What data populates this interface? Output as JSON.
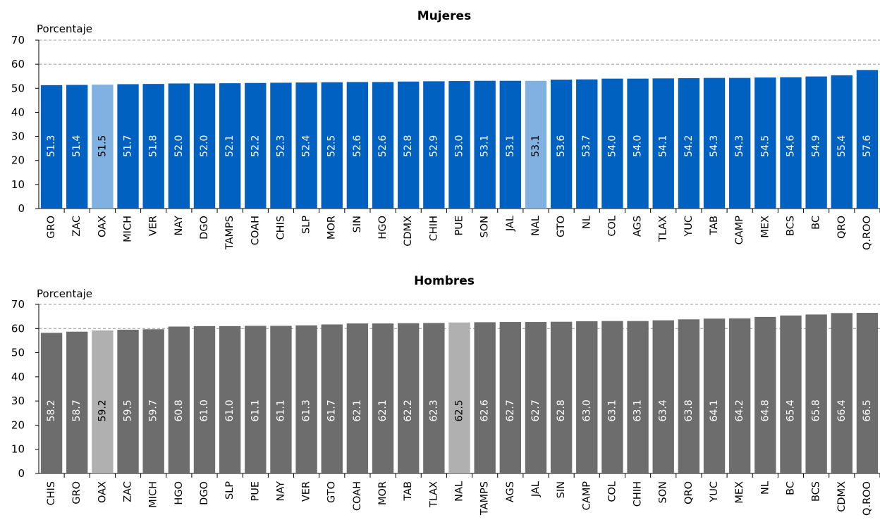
{
  "chart_data": [
    {
      "type": "bar",
      "title": "Mujeres",
      "ylabel": "Porcentaje",
      "ylim": [
        0,
        70
      ],
      "yticks": [
        0,
        10,
        20,
        30,
        40,
        50,
        60,
        70
      ],
      "grid": "dashed-horizontal-at-60-and-70",
      "colors": {
        "bar": "#0061c0",
        "highlight": "#80b1e0",
        "label": "#ffffff",
        "highlight_label": "#000000"
      },
      "highlight": [
        "OAX",
        "NAL"
      ],
      "categories": [
        "GRO",
        "ZAC",
        "OAX",
        "MICH",
        "VER",
        "NAY",
        "DGO",
        "TAMPS",
        "COAH",
        "CHIS",
        "SLP",
        "MOR",
        "SIN",
        "HGO",
        "CDMX",
        "CHIH",
        "PUE",
        "SON",
        "JAL",
        "NAL",
        "GTO",
        "NL",
        "COL",
        "AGS",
        "TLAX",
        "YUC",
        "TAB",
        "CAMP",
        "MEX",
        "BCS",
        "BC",
        "QRO",
        "Q.ROO"
      ],
      "values": [
        51.3,
        51.4,
        51.5,
        51.7,
        51.8,
        52.0,
        52.0,
        52.1,
        52.2,
        52.3,
        52.4,
        52.5,
        52.6,
        52.6,
        52.8,
        52.9,
        53.0,
        53.1,
        53.1,
        53.1,
        53.6,
        53.7,
        54.0,
        54.0,
        54.1,
        54.2,
        54.3,
        54.3,
        54.5,
        54.6,
        54.9,
        55.4,
        57.6
      ],
      "value_labels": [
        "51.3",
        "51.4",
        "51.5",
        "51.7",
        "51.8",
        "52.0",
        "52.0",
        "52.1",
        "52.2",
        "52.3",
        "52.4",
        "52.5",
        "52.6",
        "52.6",
        "52.8",
        "52.9",
        "53.0",
        "53.1",
        "53.1",
        "53.1",
        "53.6",
        "53.7",
        "54.0",
        "54.0",
        "54.1",
        "54.2",
        "54.3",
        "54.3",
        "54.5",
        "54.6",
        "54.9",
        "55.4",
        "57.6"
      ]
    },
    {
      "type": "bar",
      "title": "Hombres",
      "ylabel": "Porcentaje",
      "ylim": [
        0,
        70
      ],
      "yticks": [
        0,
        10,
        20,
        30,
        40,
        50,
        60,
        70
      ],
      "grid": "dashed-horizontal-at-60-and-70",
      "colors": {
        "bar": "#6d6d6d",
        "highlight": "#b0b0b0",
        "label": "#ffffff",
        "highlight_label": "#000000"
      },
      "highlight": [
        "OAX",
        "NAL"
      ],
      "categories": [
        "CHIS",
        "GRO",
        "OAX",
        "ZAC",
        "MICH",
        "HGO",
        "DGO",
        "SLP",
        "PUE",
        "NAY",
        "VER",
        "GTO",
        "COAH",
        "MOR",
        "TAB",
        "TLAX",
        "NAL",
        "TAMPS",
        "AGS",
        "JAL",
        "SIN",
        "CAMP",
        "COL",
        "CHIH",
        "SON",
        "QRO",
        "YUC",
        "MEX",
        "NL",
        "BC",
        "BCS",
        "CDMX",
        "Q.ROO"
      ],
      "values": [
        58.2,
        58.7,
        59.2,
        59.5,
        59.7,
        60.8,
        61.0,
        61.0,
        61.1,
        61.1,
        61.3,
        61.7,
        62.1,
        62.1,
        62.2,
        62.3,
        62.5,
        62.6,
        62.7,
        62.7,
        62.8,
        63.0,
        63.1,
        63.1,
        63.4,
        63.8,
        64.1,
        64.2,
        64.8,
        65.4,
        65.8,
        66.4,
        66.5
      ],
      "value_labels": [
        "58.2",
        "58.7",
        "59.2",
        "59.5",
        "59.7",
        "60.8",
        "61.0",
        "61.0",
        "61.1",
        "61.1",
        "61.3",
        "61.7",
        "62.1",
        "62.1",
        "62.2",
        "62.3",
        "62.5",
        "62.6",
        "62.7",
        "62.7",
        "62.8",
        "63.0",
        "63.1",
        "63.1",
        "63.4",
        "63.8",
        "64.1",
        "64.2",
        "64.8",
        "65.4",
        "65.8",
        "66.4",
        "66.5"
      ]
    }
  ]
}
